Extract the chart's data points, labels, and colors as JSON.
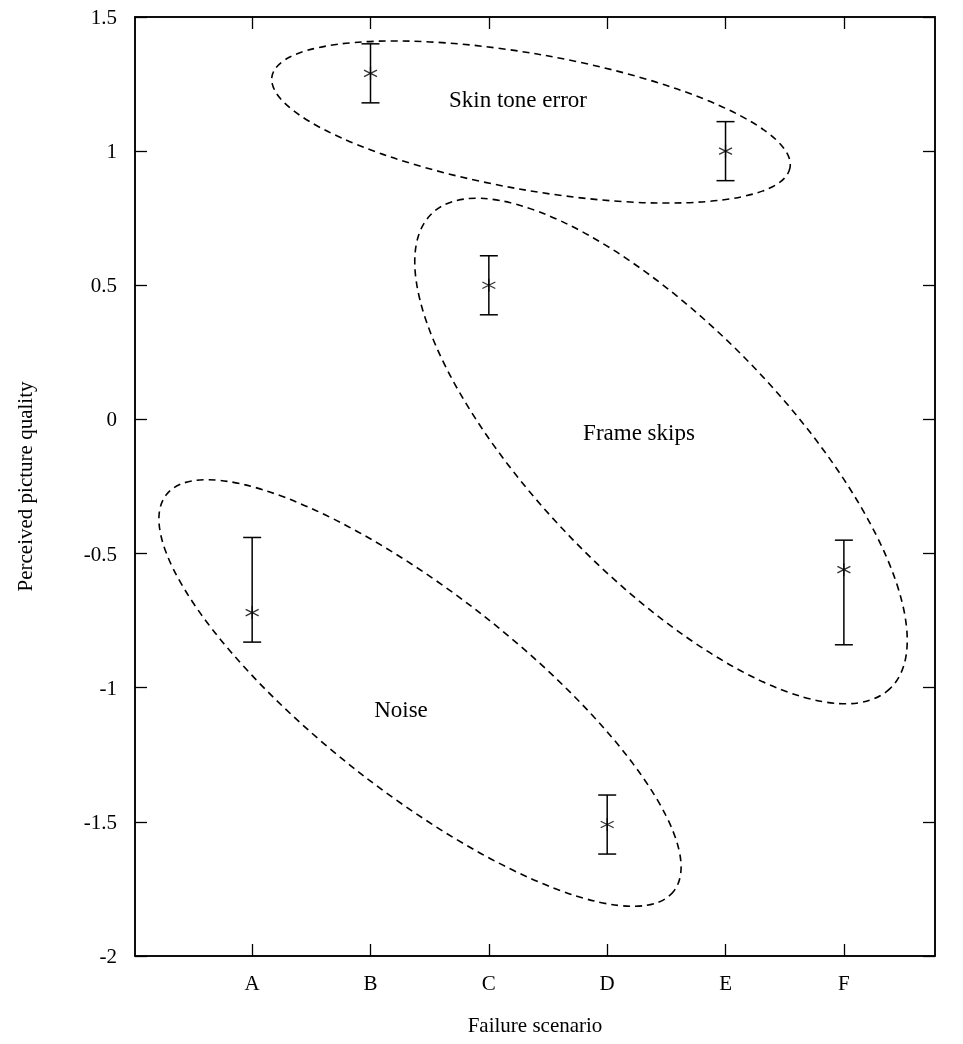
{
  "chart_data": {
    "type": "scatter",
    "xlabel": "Failure scenario",
    "ylabel": "Perceived picture quality",
    "categories": [
      "A",
      "B",
      "C",
      "D",
      "E",
      "F"
    ],
    "series": [
      {
        "color": "#000000",
        "values": [
          -0.72,
          1.29,
          0.5,
          -1.51,
          1.0,
          -0.56
        ],
        "errors": [
          [
            -0.83,
            -0.44
          ],
          0.11,
          0.11,
          0.11,
          0.11,
          [
            -0.84,
            -0.45
          ]
        ]
      }
    ],
    "ylim": [
      -2,
      1.5
    ],
    "yticks": [
      -2,
      -1.5,
      -1,
      -0.5,
      0,
      0.5,
      1,
      1.5
    ],
    "annotations": [
      "Skin tone error",
      "Frame skips",
      "Noise"
    ],
    "marker": "cross",
    "grid": false
  }
}
